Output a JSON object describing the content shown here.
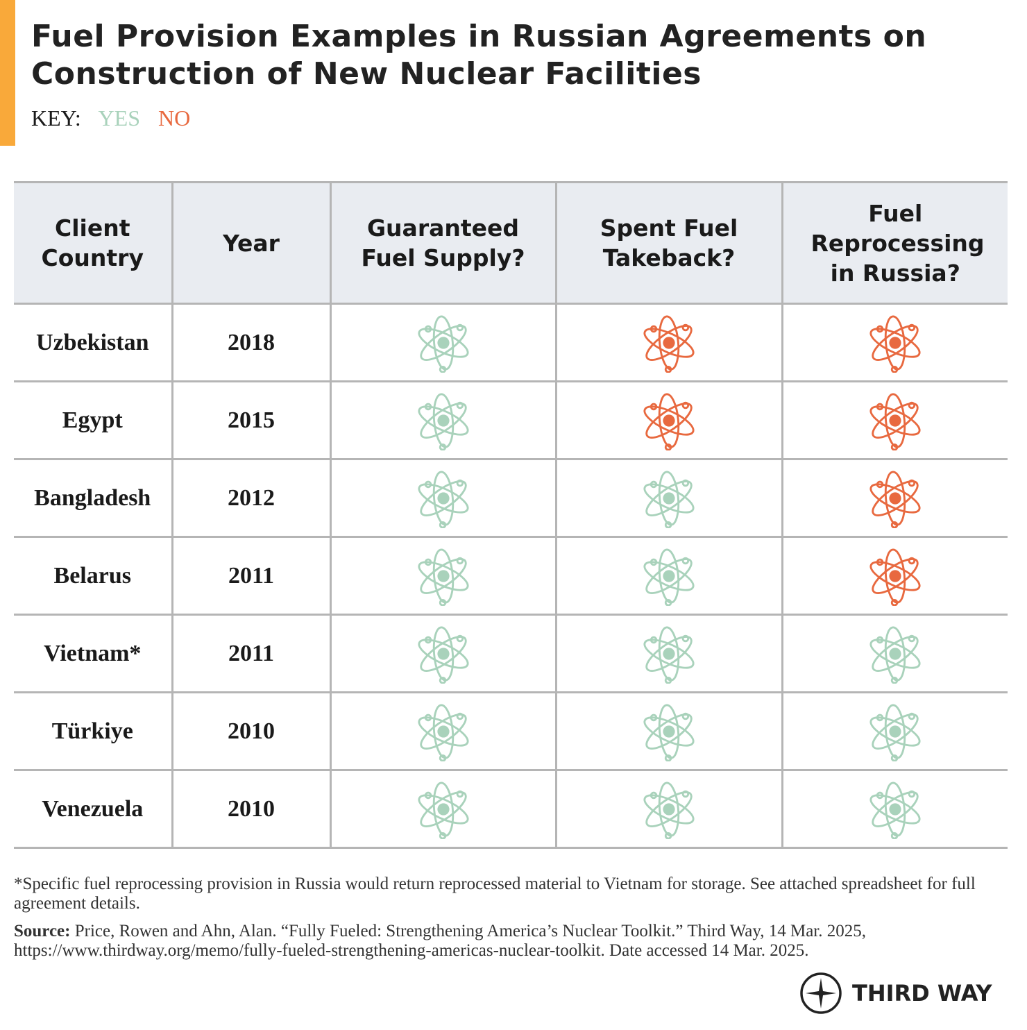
{
  "header": {
    "title": "Fuel Provision Examples in Russian Agreements on Construction of New Nuclear Facilities"
  },
  "key": {
    "label": "KEY:",
    "yes": "YES",
    "no": "NO",
    "yes_color": "#a9d2bb",
    "no_color": "#e8693f"
  },
  "table": {
    "headers": [
      "Client Country",
      "Year",
      "Guaranteed Fuel Supply?",
      "Spent Fuel Takeback?",
      "Fuel Reprocessing in Russia?"
    ],
    "rows": [
      {
        "country": "Uzbekistan",
        "year": "2018",
        "provisions": [
          true,
          false,
          false
        ]
      },
      {
        "country": "Egypt",
        "year": "2015",
        "provisions": [
          true,
          false,
          false
        ]
      },
      {
        "country": "Bangladesh",
        "year": "2012",
        "provisions": [
          true,
          true,
          false
        ]
      },
      {
        "country": "Belarus",
        "year": "2011",
        "provisions": [
          true,
          true,
          false
        ]
      },
      {
        "country": "Vietnam*",
        "year": "2011",
        "provisions": [
          true,
          true,
          true
        ]
      },
      {
        "country": "Türkiye",
        "year": "2010",
        "provisions": [
          true,
          true,
          true
        ]
      },
      {
        "country": "Venezuela",
        "year": "2010",
        "provisions": [
          true,
          true,
          true
        ]
      }
    ]
  },
  "footnote": "*Specific fuel reprocessing provision in Russia would return reprocessed material to Vietnam for storage. See attached spreadsheet for full agreement details.",
  "source": {
    "label": "Source:",
    "text": "Price, Rowen and Ahn, Alan. “Fully Fueled: Strengthening America’s Nuclear Toolkit.” Third Way, 14 Mar. 2025, https://www.thirdway.org/memo/fully-fueled-strengthening-americas-nuclear-toolkit. Date accessed 14 Mar. 2025."
  },
  "logo": "THIRD WAY"
}
